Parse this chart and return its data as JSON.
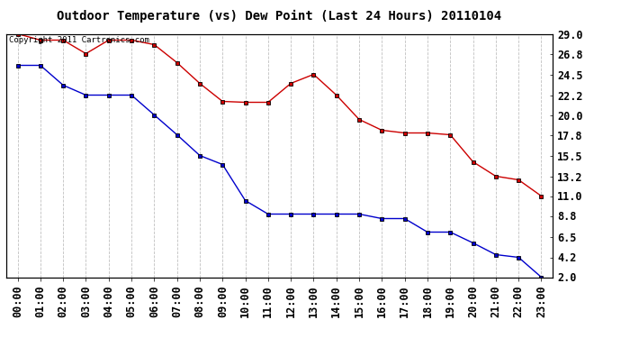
{
  "title": "Outdoor Temperature (vs) Dew Point (Last 24 Hours) 20110104",
  "copyright_text": "Copyright 2011 Cartronics.com",
  "x_labels": [
    "00:00",
    "01:00",
    "02:00",
    "03:00",
    "04:00",
    "05:00",
    "06:00",
    "07:00",
    "08:00",
    "09:00",
    "10:00",
    "11:00",
    "12:00",
    "13:00",
    "14:00",
    "15:00",
    "16:00",
    "17:00",
    "18:00",
    "19:00",
    "20:00",
    "21:00",
    "22:00",
    "23:00"
  ],
  "y_ticks": [
    2.0,
    4.2,
    6.5,
    8.8,
    11.0,
    13.2,
    15.5,
    17.8,
    20.0,
    22.2,
    24.5,
    26.8,
    29.0
  ],
  "ylim": [
    2.0,
    29.0
  ],
  "red_data": [
    29.0,
    28.3,
    28.3,
    26.8,
    28.3,
    28.3,
    27.8,
    25.8,
    23.5,
    21.5,
    21.4,
    21.4,
    23.5,
    24.5,
    22.2,
    19.5,
    18.3,
    18.0,
    18.0,
    17.8,
    14.8,
    13.2,
    12.8,
    11.0
  ],
  "blue_data": [
    25.5,
    25.5,
    23.3,
    22.2,
    22.2,
    22.2,
    20.0,
    17.8,
    15.5,
    14.5,
    10.5,
    9.0,
    9.0,
    9.0,
    9.0,
    9.0,
    8.5,
    8.5,
    7.0,
    7.0,
    5.8,
    4.5,
    4.2,
    2.0
  ],
  "red_color": "#cc0000",
  "blue_color": "#0000cc",
  "marker_color": "#000000",
  "bg_color": "#ffffff",
  "grid_color": "#c0c0c0",
  "title_fontsize": 10,
  "tick_fontsize": 8.5,
  "copyright_fontsize": 6.5
}
